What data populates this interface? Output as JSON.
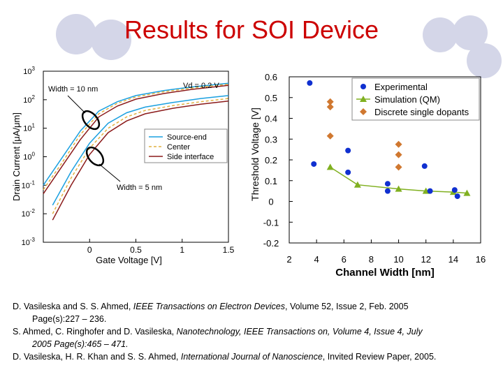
{
  "title": "Results for SOI Device",
  "chart_data": [
    {
      "type": "line",
      "xlabel": "Gate Voltage [V]",
      "ylabel": "Drain Current [μA/μm]",
      "ylog": true,
      "xlim": [
        -0.5,
        1.5
      ],
      "ylim": [
        0.001,
        1000
      ],
      "x_ticks": [
        "0",
        "0.5",
        "1",
        "1.5"
      ],
      "y_tick_exponents": [
        "3",
        "2",
        "1",
        "0",
        "-1",
        "-2",
        "-3"
      ],
      "annotations": {
        "vd": "Vd = 0.2 V",
        "width_top": "Width = 10 nm",
        "width_bottom": "Width = 5 nm"
      },
      "legend": {
        "position": "center-right",
        "entries": [
          "Source-end",
          "Center",
          "Side interface"
        ]
      },
      "colors": {
        "source_end": "#1aa0e0",
        "center": "#e0b040",
        "side_interface": "#8b1a1a"
      },
      "series": [
        {
          "name": "Source-end",
          "group": "Width = 10 nm",
          "x": [
            -0.5,
            -0.3,
            -0.1,
            0.1,
            0.3,
            0.5,
            0.8,
            1.1,
            1.5
          ],
          "y": [
            0.1,
            0.9,
            8,
            40,
            85,
            140,
            210,
            280,
            380
          ]
        },
        {
          "name": "Center",
          "group": "Width = 10 nm",
          "x": [
            -0.5,
            -0.3,
            -0.1,
            0.1,
            0.3,
            0.5,
            0.8,
            1.1,
            1.5
          ],
          "y": [
            0.07,
            0.6,
            6,
            32,
            75,
            125,
            190,
            255,
            350
          ]
        },
        {
          "name": "Side interface",
          "group": "Width = 10 nm",
          "x": [
            -0.5,
            -0.3,
            -0.1,
            0.1,
            0.3,
            0.5,
            0.8,
            1.1,
            1.5
          ],
          "y": [
            0.05,
            0.45,
            4,
            25,
            60,
            105,
            165,
            230,
            320
          ]
        },
        {
          "name": "Source-end",
          "group": "Width = 5 nm",
          "x": [
            -0.4,
            -0.2,
            0,
            0.2,
            0.4,
            0.6,
            0.9,
            1.2,
            1.5
          ],
          "y": [
            0.02,
            0.3,
            3,
            15,
            35,
            55,
            80,
            110,
            140
          ]
        },
        {
          "name": "Center",
          "group": "Width = 5 nm",
          "x": [
            -0.4,
            -0.2,
            0,
            0.2,
            0.4,
            0.6,
            0.9,
            1.2,
            1.5
          ],
          "y": [
            0.01,
            0.18,
            2,
            10,
            25,
            42,
            62,
            85,
            110
          ]
        },
        {
          "name": "Side interface",
          "group": "Width = 5 nm",
          "x": [
            -0.4,
            -0.2,
            0,
            0.2,
            0.4,
            0.6,
            0.9,
            1.2,
            1.5
          ],
          "y": [
            0.006,
            0.1,
            1.2,
            7,
            18,
            32,
            50,
            70,
            90
          ]
        }
      ]
    },
    {
      "type": "scatter",
      "xlabel": "Channel Width [nm]",
      "ylabel": "Threshold Voltage [V]",
      "xlim": [
        2,
        16
      ],
      "ylim": [
        -0.2,
        0.6
      ],
      "x_ticks": [
        "2",
        "4",
        "6",
        "8",
        "10",
        "12",
        "14",
        "16"
      ],
      "y_ticks": [
        "0.6",
        "0.5",
        "0.4",
        "0.3",
        "0.2",
        "0.1",
        "0",
        "-0.1",
        "-0.2"
      ],
      "legend": {
        "position": "top-right",
        "entries": [
          "Experimental",
          "Simulation (QM)",
          "Discrete single dopants"
        ]
      },
      "colors": {
        "experimental": "#1030d0",
        "simulation": "#80b020",
        "dopants": "#d07830"
      },
      "series": [
        {
          "name": "Experimental",
          "marker": "circle",
          "x": [
            3.5,
            3.8,
            6.3,
            6.3,
            9.2,
            9.2,
            11.9,
            12.3,
            14.1,
            14.3
          ],
          "y": [
            0.57,
            0.18,
            0.245,
            0.14,
            0.085,
            0.05,
            0.17,
            0.05,
            0.055,
            0.025
          ]
        },
        {
          "name": "Simulation (QM)",
          "marker": "triangle",
          "line": true,
          "x": [
            5,
            7,
            10,
            12,
            14,
            15
          ],
          "y": [
            0.165,
            0.08,
            0.06,
            0.05,
            0.045,
            0.04
          ]
        },
        {
          "name": "Discrete single dopants",
          "marker": "diamond",
          "x": [
            5,
            5,
            5,
            10,
            10,
            10
          ],
          "y": [
            0.48,
            0.455,
            0.315,
            0.275,
            0.225,
            0.165
          ]
        }
      ]
    }
  ],
  "references": [
    {
      "authors": "D. Vasileska and S. S. Ahmed, ",
      "journal": "IEEE Transactions on Electron Devices",
      "rest_first": ", Volume 52,  Issue 2,  Feb. 2005",
      "rest_cont": "Page(s):227 – 236."
    },
    {
      "authors": "S. Ahmed, C. Ringhofer and D. Vasileska, ",
      "journal": "Nanotechnology, IEEE Transactions on, Volume 4,  Issue 4,  July",
      "rest_first": "",
      "rest_cont_italic": "2005 Page(s):465 – 471."
    },
    {
      "authors": "D. Vasileska, H. R. Khan and S. S. Ahmed, ",
      "journal": "International Journal of Nanoscience",
      "rest_first": ", Invited Review Paper, 2005."
    }
  ]
}
